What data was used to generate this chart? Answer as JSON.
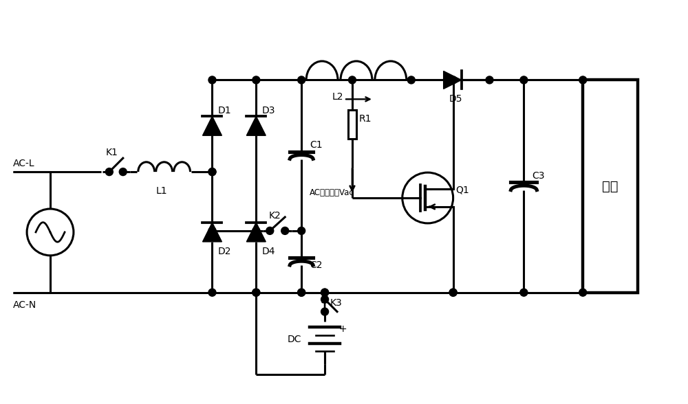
{
  "bg": "#ffffff",
  "lc": "#000000",
  "lw": 2.2,
  "dr": 0.055,
  "fw": 10.0,
  "fh": 5.88,
  "labels": {
    "ACL": "AC-L",
    "ACN": "AC-N",
    "K1": "K1",
    "L1": "L1",
    "L2": "L2",
    "D1": "D1",
    "D2": "D2",
    "D3": "D3",
    "D4": "D4",
    "D5": "D5",
    "C1": "C1",
    "C2": "C2",
    "C3": "C3",
    "K2": "K2",
    "K3": "K3",
    "R1": "R1",
    "Q1": "Q1",
    "DC": "DC",
    "load": "负载",
    "vac": "AC电压采样Vac"
  }
}
